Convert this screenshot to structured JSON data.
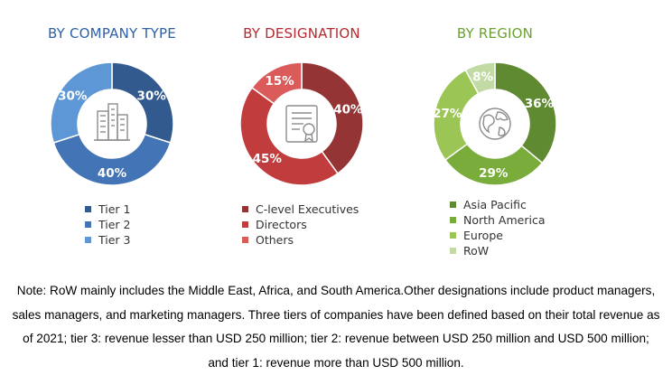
{
  "colors": {
    "company_title": "#2e60a8",
    "designation_title": "#b52a30",
    "region_title": "#6aa132",
    "tier1": "#325a8f",
    "tier2": "#4374b5",
    "tier3": "#5e97d6",
    "clevel": "#943434",
    "directors": "#c13c3c",
    "others": "#db5b5b",
    "asia_pacific": "#5f8a31",
    "north_america": "#79ac3a",
    "europe": "#9bc554",
    "row": "#c2dba4",
    "icon_stroke": "#8c8c8c"
  },
  "panels": {
    "company": {
      "title": "BY COMPANY TYPE",
      "icon": "buildings-icon"
    },
    "designation": {
      "title": "BY DESIGNATION",
      "icon": "certificate-icon"
    },
    "region": {
      "title": "BY REGION",
      "icon": "globe-icon"
    }
  },
  "chart_data": [
    {
      "type": "pie",
      "title": "BY COMPANY TYPE",
      "categories": [
        "Tier 1",
        "Tier 2",
        "Tier 3"
      ],
      "values": [
        30,
        40,
        30
      ],
      "labels": [
        "30%",
        "40%",
        "30%"
      ],
      "colors": [
        "#325a8f",
        "#4374b5",
        "#5e97d6"
      ],
      "legend": "bottom"
    },
    {
      "type": "pie",
      "title": "BY DESIGNATION",
      "categories": [
        "C-level Executives",
        "Directors",
        "Others"
      ],
      "values": [
        40,
        45,
        15
      ],
      "labels": [
        "40%",
        "45%",
        "15%"
      ],
      "colors": [
        "#943434",
        "#c13c3c",
        "#db5b5b"
      ],
      "legend": "bottom"
    },
    {
      "type": "pie",
      "title": "BY REGION",
      "categories": [
        "Asia Pacific",
        "North America",
        "Europe",
        "RoW"
      ],
      "values": [
        36,
        29,
        27,
        8
      ],
      "labels": [
        "36%",
        "29%",
        "27%",
        "8%"
      ],
      "colors": [
        "#5f8a31",
        "#79ac3a",
        "#9bc554",
        "#c2dba4"
      ],
      "legend": "bottom"
    }
  ],
  "note": "Note: RoW mainly includes the Middle East, Africa, and South America.Other designations include product managers, sales managers, and marketing managers. Three tiers of companies have been defined based on their total revenue as of 2021; tier 3: revenue lesser than USD 250 million; tier 2: revenue between USD 250 million and USD 500 million; and tier 1: revenue more than USD 500 million."
}
